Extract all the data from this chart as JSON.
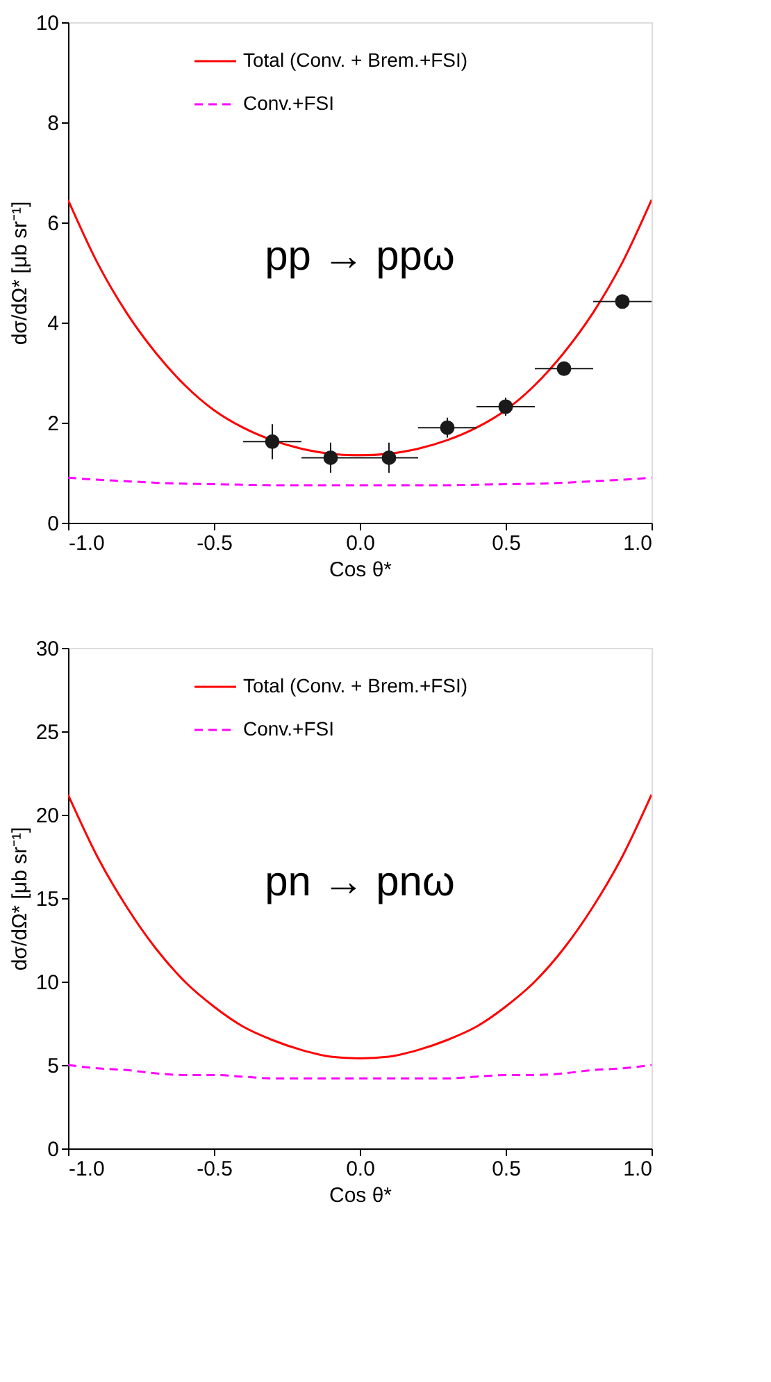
{
  "chart_data": [
    {
      "type": "line",
      "xlabel": "Cos θ*",
      "ylabel": "dσ/dΩ* [μb sr⁻¹]",
      "xlim": [
        -1.0,
        1.0
      ],
      "xticks": [
        {
          "value": -1,
          "label": "-1.0"
        },
        {
          "value": -0.5,
          "label": "-0.5"
        },
        {
          "value": 0,
          "label": "0.0"
        },
        {
          "value": 0.5,
          "label": "0.5"
        },
        {
          "value": 1,
          "label": "1.0"
        }
      ],
      "ylim": [
        0,
        10
      ],
      "yticks": [
        0,
        2,
        4,
        6,
        8,
        10
      ],
      "grid": false,
      "legend": "top",
      "annotations": [
        "pp → ppω"
      ],
      "x": [
        -1.0,
        -0.9,
        -0.8,
        -0.7,
        -0.6,
        -0.5,
        -0.4,
        -0.3,
        -0.2,
        -0.1,
        0.0,
        0.1,
        0.2,
        0.3,
        0.4,
        0.5,
        0.6,
        0.7,
        0.8,
        0.9,
        1.0
      ],
      "series": [
        {
          "name": "Total (Conv. + Brem.+FSI)",
          "color": "#ff0000",
          "line_style": "solid",
          "values": [
            6.45,
            5.2,
            4.2,
            3.4,
            2.75,
            2.25,
            1.9,
            1.65,
            1.48,
            1.38,
            1.35,
            1.38,
            1.48,
            1.65,
            1.9,
            2.25,
            2.75,
            3.4,
            4.2,
            5.2,
            6.45
          ]
        },
        {
          "name": "Conv.+FSI",
          "color": "#ff00ff",
          "line_style": "dashed",
          "values": [
            0.9,
            0.86,
            0.83,
            0.8,
            0.78,
            0.77,
            0.76,
            0.75,
            0.75,
            0.75,
            0.75,
            0.75,
            0.75,
            0.75,
            0.76,
            0.77,
            0.78,
            0.8,
            0.83,
            0.86,
            0.9
          ]
        },
        {
          "type": "scatter",
          "color": "#1a1a1a",
          "marker": "circle",
          "x": [
            -0.3,
            -0.1,
            0.1,
            0.3,
            0.5,
            0.7,
            0.9
          ],
          "values": [
            1.62,
            1.3,
            1.3,
            1.9,
            2.32,
            3.08,
            4.42
          ],
          "errors": [
            0.35,
            0.3,
            0.3,
            0.2,
            0.18,
            0.05,
            0.05
          ],
          "xerrors": [
            0.1,
            0.1,
            0.1,
            0.1,
            0.1,
            0.1,
            0.1
          ]
        }
      ]
    },
    {
      "type": "line",
      "xlabel": "Cos θ*",
      "ylabel": "dσ/dΩ* [μb sr⁻¹]",
      "xlim": [
        -1.0,
        1.0
      ],
      "xticks": [
        {
          "value": -1,
          "label": "-1.0"
        },
        {
          "value": -0.5,
          "label": "-0.5"
        },
        {
          "value": 0,
          "label": "0.0"
        },
        {
          "value": 0.5,
          "label": "0.5"
        },
        {
          "value": 1,
          "label": "1.0"
        }
      ],
      "ylim": [
        0,
        30
      ],
      "yticks": [
        0,
        5,
        10,
        15,
        20,
        25,
        30
      ],
      "grid": false,
      "legend": "top",
      "annotations": [
        "pn → pnω"
      ],
      "x": [
        -1.0,
        -0.9,
        -0.8,
        -0.7,
        -0.6,
        -0.5,
        -0.4,
        -0.3,
        -0.2,
        -0.1,
        0.0,
        0.1,
        0.2,
        0.3,
        0.4,
        0.5,
        0.6,
        0.7,
        0.8,
        0.9,
        1.0
      ],
      "series": [
        {
          "name": "Total (Conv. + Brem.+FSI)",
          "color": "#ff0000",
          "line_style": "solid",
          "values": [
            21.2,
            17.5,
            14.5,
            12.0,
            10.0,
            8.5,
            7.3,
            6.5,
            5.9,
            5.5,
            5.4,
            5.5,
            5.9,
            6.5,
            7.3,
            8.5,
            10.0,
            12.0,
            14.5,
            17.5,
            21.2
          ]
        },
        {
          "name": "Conv.+FSI",
          "color": "#ff00ff",
          "line_style": "dashed",
          "values": [
            5.0,
            4.8,
            4.7,
            4.5,
            4.4,
            4.4,
            4.3,
            4.2,
            4.2,
            4.2,
            4.2,
            4.2,
            4.2,
            4.2,
            4.3,
            4.4,
            4.4,
            4.5,
            4.7,
            4.8,
            5.0
          ]
        }
      ]
    }
  ]
}
